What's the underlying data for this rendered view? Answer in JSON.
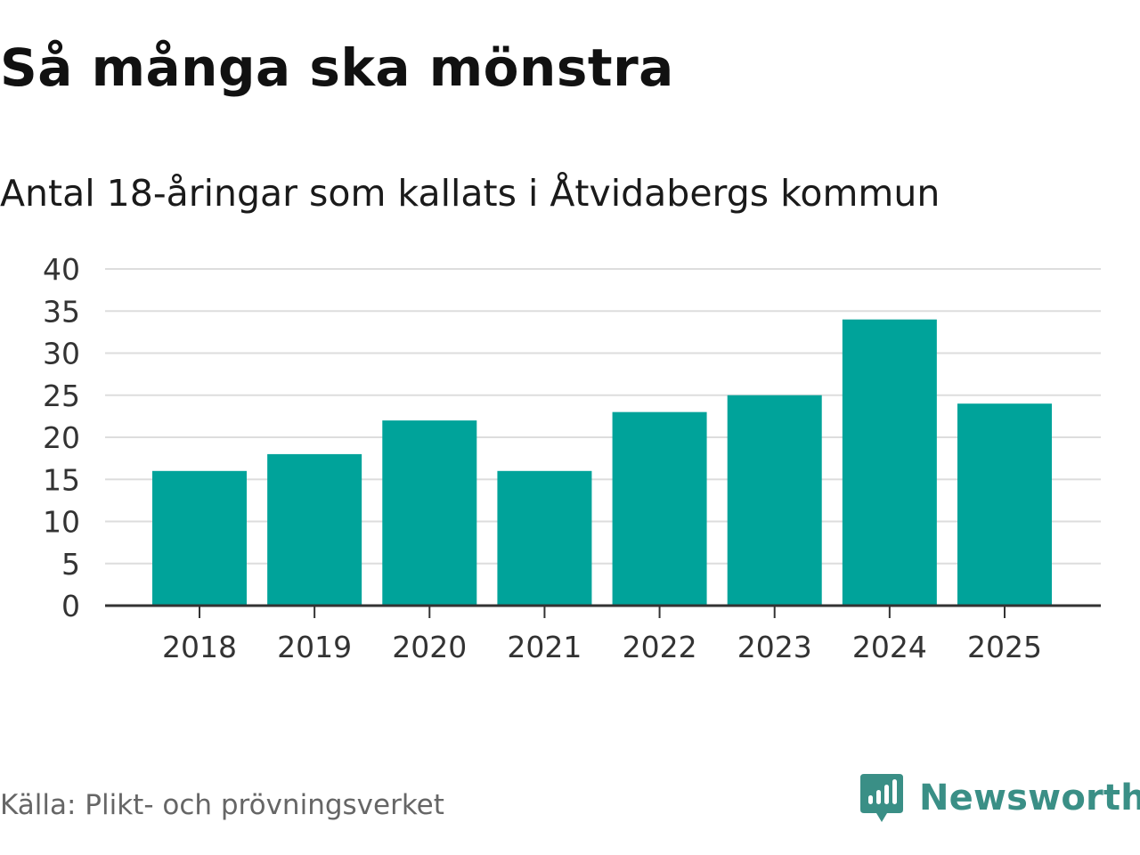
{
  "header": {
    "title": "Så många ska mönstra",
    "subtitle": "Antal 18-åringar som kallats i Åtvidabergs kommun"
  },
  "chart_data": {
    "type": "bar",
    "title": "Så många ska mönstra",
    "subtitle": "Antal 18-åringar som kallats i Åtvidabergs kommun",
    "categories": [
      "2018",
      "2019",
      "2020",
      "2021",
      "2022",
      "2023",
      "2024",
      "2025"
    ],
    "values": [
      16,
      18,
      22,
      16,
      23,
      25,
      34,
      24
    ],
    "xlabel": "",
    "ylabel": "",
    "ylim": [
      0,
      40
    ],
    "yticks": [
      "0",
      "5",
      "10",
      "15",
      "20",
      "25",
      "30",
      "35",
      "40"
    ],
    "grid": true,
    "bar_color": "#00a39a"
  },
  "footer": {
    "source": "Källa: Plikt- och prövningsverket",
    "brand": "Newsworthy",
    "brand_color": "#3a8f86"
  }
}
